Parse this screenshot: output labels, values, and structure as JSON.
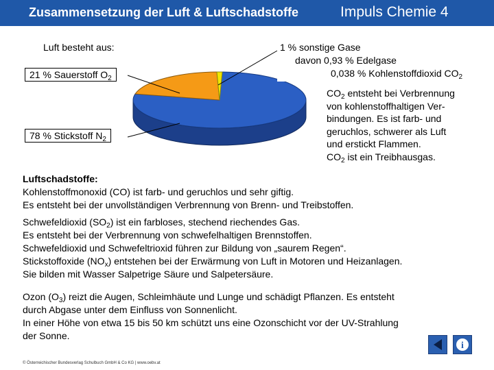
{
  "header": {
    "title": "Zusammensetzung der Luft & Luftschadstoffe",
    "subtitle": "Impuls Chemie 4"
  },
  "diagram": {
    "heading": "Luft besteht aus:",
    "oxygen": {
      "text": "21 % Sauerstoff O",
      "sub": "2"
    },
    "nitrogen": {
      "text": "78 % Stickstoff N",
      "sub": "2"
    },
    "other": {
      "line1": "1 % sonstige Gase",
      "line2": "davon 0,93 % Edelgase",
      "line3": "0,038 % Kohlenstoffdioxid CO",
      "line3_sub": "2"
    }
  },
  "chart_data": {
    "type": "pie",
    "title": "Luft besteht aus:",
    "slices": [
      {
        "label": "Stickstoff N2",
        "value": 78
      },
      {
        "label": "Sauerstoff O2",
        "value": 21
      },
      {
        "label": "sonstige Gase",
        "value": 1
      }
    ],
    "colors": {
      "nitrogen": "#2b5fc4",
      "oxygen": "#f59a16",
      "other": "#f2e600"
    }
  },
  "co2_info": {
    "l1a": "CO",
    "l1sub": "2",
    "l1b": " entsteht bei Verbrennung",
    "l2": "von kohlenstoffhaltigen Ver-",
    "l3": "bindungen. Es ist farb- und",
    "l4": "geruchlos, schwerer als Luft",
    "l5": "und erstickt Flammen.",
    "l6a": "CO",
    "l6sub": "2",
    "l6b": " ist ein Treibhausgas."
  },
  "pollutants": {
    "heading": "Luftschadstoffe:",
    "co_1": "Kohlenstoffmonoxid (CO) ist farb- und geruchlos und sehr giftig.",
    "co_2": "Es entsteht bei der unvollständigen Verbrennung von Brenn- und Treibstoffen.",
    "so2_1a": "Schwefeldioxid (SO",
    "so2_1sub": "2",
    "so2_1b": ") ist ein farbloses, stechend riechendes Gas.",
    "so2_2": "Es entsteht bei der Verbrennung von schwefelhaltigen Brennstoffen.",
    "so2_3": "Schwefeldioxid und Schwefeltrioxid führen zur Bildung von „saurem Regen“.",
    "nox_1a": "Stickstoffoxide (NO",
    "nox_1sub": "x",
    "nox_1b": ") entstehen bei der Erwärmung von Luft in Motoren und Heizanlagen.",
    "nox_2": "Sie bilden mit Wasser Salpetrige Säure und Salpetersäure.",
    "o3_1a": "Ozon (O",
    "o3_1sub": "3",
    "o3_1b": ") reizt die Augen, Schleimhäute und Lunge und schädigt Pflanzen. Es entsteht",
    "o3_2": "durch Abgase unter dem Einfluss von Sonnenlicht.",
    "o3_3": "In einer Höhe von etwa 15 bis 50 km schützt uns eine Ozonschicht vor der UV-Strahlung",
    "o3_4": "der Sonne."
  },
  "footer": {
    "text": "© Österreichischer Bundesverlag Schulbuch GmbH & Co KG | www.oebv.at"
  },
  "nav": {
    "back_icon": "back-arrow-icon",
    "info_icon": "info-icon",
    "info_glyph": "i"
  }
}
